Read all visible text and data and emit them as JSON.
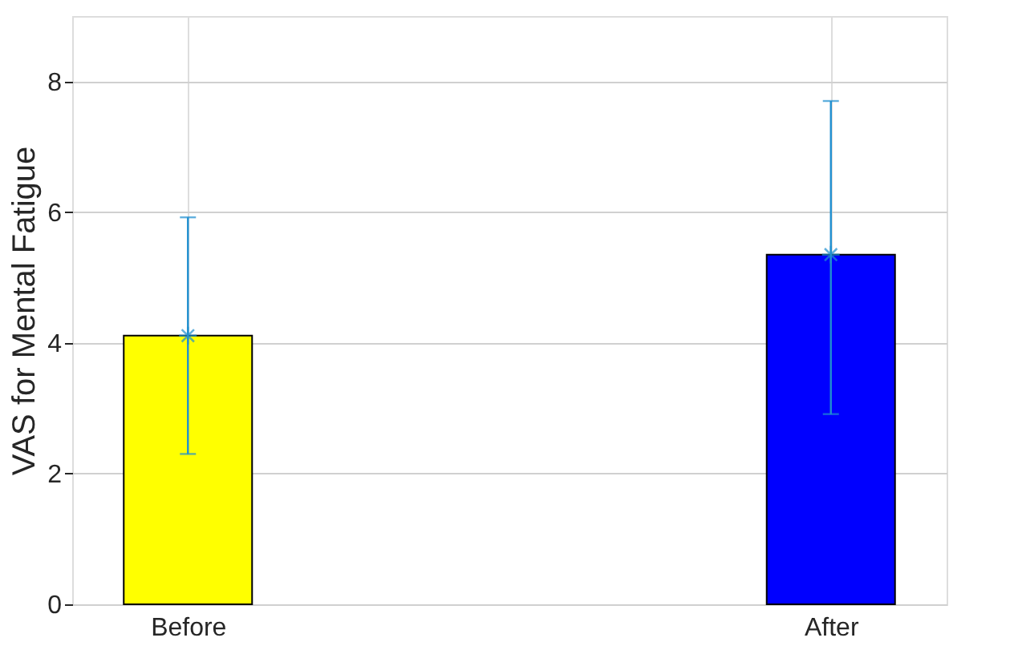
{
  "chart_data": {
    "type": "bar",
    "ylabel": "VAS for Mental Fatigue",
    "categories": [
      "Before",
      "After"
    ],
    "series": [
      {
        "values": [
          4.11,
          5.35
        ],
        "colors": [
          "#ffff00",
          "#0000ff"
        ],
        "errors": [
          [
            2.3,
            5.92
          ],
          [
            2.91,
            7.7
          ]
        ]
      },
      {
        "type": "scatter",
        "x": [
          "Before",
          "After"
        ],
        "values": [
          4.11,
          5.35
        ],
        "color": "#1f8fd0",
        "marker": "cross"
      }
    ],
    "ylim": [
      0,
      9
    ],
    "yticks": [
      0,
      2,
      4,
      6,
      8
    ],
    "grid": true
  }
}
